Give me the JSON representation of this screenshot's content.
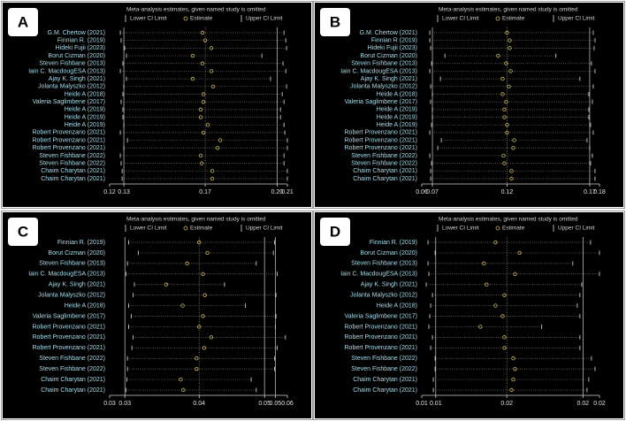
{
  "chart_data": [
    {
      "type": "forest",
      "label": "A",
      "title": "Meta-analysis estimates, given named study is omitted",
      "categories": [
        "G.M. Chertow (2021)",
        "Finnian R. (2019)",
        "Hideki Fujii (2023)",
        "Borut Cizman (2020)",
        "Steven Fishbane (2013)",
        "Iain C. MacdougESA (2013)",
        "Ajay K. Singh (2021)",
        "Jolanta Malyszko (2012)",
        "Heide A (2018)",
        "Valeria Saglimbene (2017)",
        "Heide A (2019)",
        "Heide A (2019)",
        "Heide A (2019)",
        "Robert Provenzano (2021)",
        "Robert Provenzano (2021)",
        "Robert Provenzano (2021)",
        "Steven Fishbane (2022)",
        "Steven Fishbane (2022)",
        "Chaim Charytan (2021)",
        "Chaim Charytan (2021)"
      ],
      "series": [
        {
          "name": "Lower CI Limit",
          "color": "#dcdcdc",
          "values": [
            0.1254,
            0.1258,
            0.1276,
            0.1285,
            0.1267,
            0.1254,
            0.1285,
            0.1272,
            0.1267,
            0.1258,
            0.1267,
            0.1267,
            0.1272,
            0.1254,
            0.129,
            0.1272,
            0.1254,
            0.1258,
            0.1263,
            0.1263
          ]
        },
        {
          "name": "Estimate",
          "color": "#c9b45c",
          "values": [
            0.167,
            0.1684,
            0.1715,
            0.1621,
            0.167,
            0.1715,
            0.1621,
            0.1724,
            0.1675,
            0.1675,
            0.1661,
            0.1661,
            0.1697,
            0.1675,
            0.176,
            0.1747,
            0.1661,
            0.1666,
            0.172,
            0.172
          ]
        },
        {
          "name": "Upper CI Limit",
          "color": "#dcdcdc",
          "values": [
            0.2083,
            0.2092,
            0.2096,
            0.1971,
            0.2078,
            0.2092,
            0.2015,
            0.2096,
            0.2074,
            0.2083,
            0.2065,
            0.2065,
            0.2083,
            0.2087,
            0.21,
            0.21,
            0.2083,
            0.2083,
            0.21,
            0.21
          ]
        }
      ],
      "xlim": [
        0.12,
        0.21
      ],
      "xticks": [
        0.12,
        {
          "value": 0.1272,
          "label": "0.13"
        },
        {
          "value": 0.1684,
          "label": "0.17"
        },
        {
          "value": 0.2048,
          "label": "0.20"
        },
        0.21
      ]
    },
    {
      "type": "forest",
      "label": "B",
      "title": "Meta-analysis estimates, given named study is omitted",
      "categories": [
        "G.M. Chertow (2021)",
        "Finnian R (2019)",
        "Hideki Fujii (2023)",
        "Borut Cizman (2020)",
        "Steven Fishbane (2013)",
        "Iain C. MacdougESA (2013)",
        "Ajay K. Singh (2021)",
        "Jolanta Malyszko (2012)",
        "Heide A (2018)",
        "Valeria Saglimbene (2017)",
        "Heide A (2019)",
        "Heide A (2019)",
        "Heide A (2019)",
        "Robert Provenzano (2021)",
        "Robert Provenzano (2021)",
        "Robert Provenzano (2021)",
        "Steven Fishbane (2022)",
        "Steven Fishbane (2022)",
        "Chaim Charytan (2021)",
        "Chaim Charytan (2021)"
      ],
      "series": [
        {
          "name": "Lower CI Limit",
          "color": "#dcdcdc",
          "values": [
            0.0654,
            0.0654,
            0.066,
            0.0756,
            0.0666,
            0.0654,
            0.0726,
            0.066,
            0.0672,
            0.066,
            0.0672,
            0.0672,
            0.0666,
            0.0654,
            0.0732,
            0.0708,
            0.0654,
            0.0666,
            0.066,
            0.066
          ]
        },
        {
          "name": "Estimate",
          "color": "#c9b45c",
          "values": [
            0.1176,
            0.1194,
            0.1194,
            0.1116,
            0.117,
            0.12,
            0.1146,
            0.1188,
            0.1146,
            0.117,
            0.1158,
            0.1158,
            0.1176,
            0.1176,
            0.1224,
            0.1218,
            0.1152,
            0.1158,
            0.1206,
            0.1206
          ]
        },
        {
          "name": "Upper CI Limit",
          "color": "#dcdcdc",
          "values": [
            0.1758,
            0.177,
            0.1764,
            0.1506,
            0.1746,
            0.177,
            0.1668,
            0.1758,
            0.1728,
            0.1752,
            0.1728,
            0.1728,
            0.174,
            0.1758,
            0.1716,
            0.1734,
            0.1752,
            0.174,
            0.177,
            0.177
          ]
        }
      ],
      "xlim": [
        0.06,
        0.18
      ],
      "xticks": [
        0.06,
        {
          "value": 0.0672,
          "label": "0.07"
        },
        {
          "value": 0.1176,
          "label": "0.12"
        },
        {
          "value": 0.1734,
          "label": "0.17"
        },
        0.18
      ]
    },
    {
      "type": "forest",
      "label": "C",
      "title": "Meta-analysis estimates, given named study is omitted",
      "categories": [
        "Finnian R. (2019)",
        "Borut Cizman (2020)",
        "Steven Fishbane (2013)",
        "Iain C. MacdougESA (2013)",
        "Ajay K. Singh (2021)",
        "Jolanta Malyszko (2012)",
        "Heide A (2018)",
        "Valeria Saglimbene (2017)",
        "Robert Provenzano (2021)",
        "Robert Provenzano (2021)",
        "Robert Provenzano (2021)",
        "Steven Fishbane (2022)",
        "Steven Fishbane (2022)",
        "Chaim Charytan (2021)",
        "Chaim Charytan (2021)"
      ],
      "series": [
        {
          "name": "Lower CI Limit",
          "color": "#dcdcdc",
          "values": [
            0.031,
            0.0325,
            0.0308,
            0.0306,
            0.0319,
            0.0317,
            0.031,
            0.0314,
            0.031,
            0.0317,
            0.0315,
            0.0308,
            0.0308,
            0.0307,
            0.0306
          ]
        },
        {
          "name": "Estimate",
          "color": "#c9b45c",
          "values": [
            0.0421,
            0.0434,
            0.0402,
            0.0427,
            0.0369,
            0.043,
            0.0395,
            0.0427,
            0.0421,
            0.044,
            0.0429,
            0.0417,
            0.0417,
            0.0392,
            0.0396
          ]
        },
        {
          "name": "Upper CI Limit",
          "color": "#dcdcdc",
          "values": [
            0.054,
            0.0538,
            0.0511,
            0.0544,
            0.0461,
            0.0542,
            0.0494,
            0.0542,
            0.0541,
            0.0557,
            0.0544,
            0.054,
            0.054,
            0.0503,
            0.0511
          ]
        }
      ],
      "xlim": [
        0.028,
        0.056
      ],
      "xticks": [
        {
          "value": 0.028,
          "label": "0.03"
        },
        {
          "value": 0.0304,
          "label": "0.03"
        },
        {
          "value": 0.0421,
          "label": "0.04"
        },
        {
          "value": 0.0524,
          "label": "0.05"
        },
        {
          "value": 0.0541,
          "label": "0.05"
        },
        {
          "value": 0.056,
          "label": "0.06"
        }
      ]
    },
    {
      "type": "forest",
      "label": "D",
      "title": "Meta-analysis estimates, given named study is omitted",
      "categories": [
        "Finnian R. (2019)",
        "Borut Cizman (2020)",
        "Steven Fishbane (2013)",
        "Iain C. MacdougESA (2013)",
        "Ajay K. Singh (2021)",
        "Jolanta Malyszko (2012)",
        "Heide A (2018)",
        "Valeria Saglimbene (2017)",
        "Robert Provenzano (2021)",
        "Robert Provenzano (2021)",
        "Robert Provenzano (2021)",
        "Steven Fishbane (2022)",
        "Steven Fishbane (2022)",
        "Chaim Charytan (2021)",
        "Chaim Charytan (2021)"
      ],
      "series": [
        {
          "name": "Lower CI Limit",
          "color": "#dcdcdc",
          "values": [
            0.01049,
            0.01105,
            0.01049,
            0.01056,
            0.01035,
            0.01084,
            0.0107,
            0.01063,
            0.01056,
            0.01084,
            0.0107,
            0.01105,
            0.01105,
            0.01091,
            0.01091
          ]
        },
        {
          "name": "Estimate",
          "color": "#c9b45c",
          "values": [
            0.01581,
            0.0177,
            0.0149,
            0.01735,
            0.01511,
            0.01651,
            0.01581,
            0.01637,
            0.01462,
            0.01651,
            0.01651,
            0.01721,
            0.01735,
            0.01721,
            0.01707
          ]
        },
        {
          "name": "Upper CI Limit",
          "color": "#dcdcdc",
          "values": [
            0.0233,
            0.024,
            0.0219,
            0.024,
            0.0226,
            0.02246,
            0.02225,
            0.02246,
            0.01945,
            0.02246,
            0.02246,
            0.02337,
            0.02365,
            0.02316,
            0.02302
          ]
        }
      ],
      "xlim": [
        0.01,
        0.024
      ],
      "xticks": [
        0.01,
        {
          "value": 0.0111,
          "label": "0.01"
        },
        {
          "value": 0.0167,
          "label": "0.02"
        },
        {
          "value": 0.0227,
          "label": "0.02"
        },
        {
          "value": 0.024,
          "label": "0.02"
        }
      ]
    }
  ]
}
